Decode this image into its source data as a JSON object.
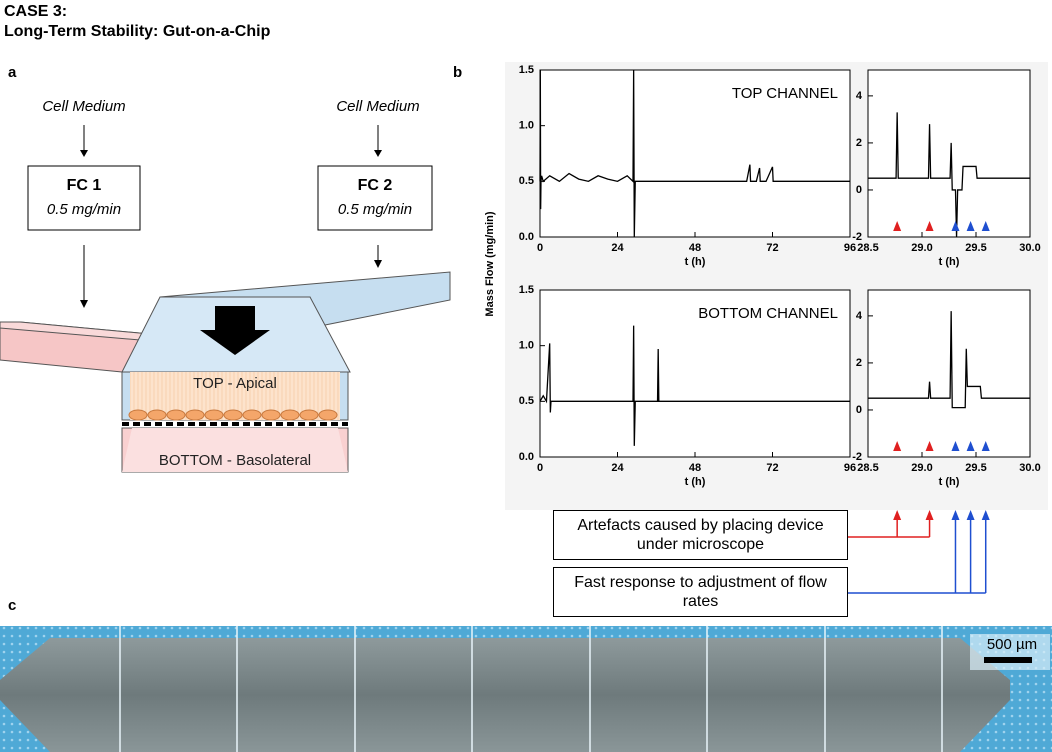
{
  "header": {
    "case": "CASE 3:",
    "title": "Long-Term Stability: Gut-on-a-Chip"
  },
  "panel_labels": [
    "a",
    "b",
    "c"
  ],
  "diagram": {
    "inputs": [
      {
        "label": "Cell Medium",
        "controller": "FC 1",
        "rate": "0.5 mg/min"
      },
      {
        "label": "Cell Medium",
        "controller": "FC 2",
        "rate": "0.5 mg/min"
      }
    ],
    "top_layer": "TOP - Apical",
    "bottom_layer": "BOTTOM - Basolateral"
  },
  "shared_y_label": "Mass Flow (mg/min)",
  "chart_data": [
    {
      "type": "line",
      "annotation": "TOP CHANNEL",
      "x_label": "t (h)",
      "x": [
        0,
        0.1,
        0.2,
        0.3,
        0.5,
        1,
        3,
        6,
        9,
        12,
        15,
        18,
        21,
        24,
        27,
        28.8,
        29,
        29.2,
        29.5,
        32,
        36,
        40,
        44,
        48,
        52,
        56,
        60,
        64,
        65,
        65.2,
        67,
        68,
        68.2,
        70,
        72,
        72.2,
        76,
        80,
        84,
        88,
        92,
        96
      ],
      "series": [
        {
          "color": "#000000",
          "values": [
            0.5,
            1.5,
            0.25,
            0.5,
            0.55,
            0.5,
            0.55,
            0.5,
            0.57,
            0.52,
            0.5,
            0.55,
            0.52,
            0.5,
            0.55,
            0.5,
            1.5,
            0.0,
            0.5,
            0.5,
            0.5,
            0.5,
            0.5,
            0.5,
            0.5,
            0.5,
            0.5,
            0.5,
            0.65,
            0.5,
            0.5,
            0.62,
            0.5,
            0.5,
            0.63,
            0.5,
            0.5,
            0.5,
            0.5,
            0.5,
            0.5,
            0.5
          ]
        }
      ],
      "xlim": [
        0,
        96
      ],
      "xticks": [
        0,
        24,
        48,
        72,
        96
      ],
      "ylim": [
        0,
        1.5
      ],
      "yticks": [
        {
          "value": 0,
          "label": "0.0"
        },
        0.5,
        {
          "value": 1,
          "label": "1.0"
        },
        1.5
      ]
    },
    {
      "type": "line",
      "x_label": "t (h)",
      "x": [
        28.5,
        28.76,
        28.77,
        28.78,
        28.79,
        29.06,
        29.07,
        29.08,
        29.26,
        29.27,
        29.28,
        29.31,
        29.32,
        29.33,
        29.37,
        29.38,
        29.5,
        29.51,
        30
      ],
      "series": [
        {
          "color": "#000000",
          "values": [
            0.5,
            0.5,
            3.3,
            0.5,
            0.5,
            0.5,
            2.8,
            0.5,
            0.5,
            2.0,
            0.0,
            0.0,
            -2.0,
            0.0,
            0.0,
            1.0,
            1.0,
            0.5,
            0.5
          ]
        }
      ],
      "markers": {
        "x": [
          28.77,
          29.07,
          29.31,
          29.45,
          29.59
        ],
        "colors": [
          "#e02020",
          "#e02020",
          "#1f4fd0",
          "#1f4fd0",
          "#1f4fd0"
        ]
      },
      "xlim": [
        28.5,
        30
      ],
      "xticks": [
        28.5,
        {
          "value": 29,
          "label": "29.0"
        },
        29.5,
        {
          "value": 30,
          "label": "30.0"
        }
      ],
      "ylim": [
        -2,
        5.1
      ],
      "yticks": [
        -2,
        0,
        2,
        4
      ]
    },
    {
      "type": "line",
      "annotation": "BOTTOM CHANNEL",
      "x_label": "t (h)",
      "x": [
        0,
        1,
        2,
        3,
        3.2,
        3.4,
        6,
        12,
        18,
        24,
        28.8,
        29,
        29.2,
        29.5,
        33,
        36.4,
        36.6,
        36.8,
        40,
        48,
        56,
        64,
        72,
        80,
        88,
        96
      ],
      "series": [
        {
          "color": "#000000",
          "values": [
            0.5,
            0.55,
            0.5,
            1.02,
            0.4,
            0.5,
            0.5,
            0.5,
            0.5,
            0.5,
            0.5,
            1.18,
            0.1,
            0.5,
            0.5,
            0.5,
            0.97,
            0.5,
            0.5,
            0.5,
            0.5,
            0.5,
            0.5,
            0.5,
            0.5,
            0.5
          ]
        }
      ],
      "xlim": [
        0,
        96
      ],
      "xticks": [
        0,
        24,
        48,
        72,
        96
      ],
      "ylim": [
        0,
        1.5
      ],
      "yticks": [
        {
          "value": 0,
          "label": "0.0"
        },
        0.5,
        {
          "value": 1,
          "label": "1.0"
        },
        1.5
      ]
    },
    {
      "type": "line",
      "x_label": "t (h)",
      "x": [
        28.5,
        29.06,
        29.07,
        29.08,
        29.26,
        29.27,
        29.28,
        29.4,
        29.41,
        29.42,
        29.43,
        29.54,
        29.55,
        30
      ],
      "series": [
        {
          "color": "#000000",
          "values": [
            0.5,
            0.5,
            1.2,
            0.5,
            0.5,
            4.2,
            0.1,
            0.1,
            2.6,
            1.0,
            1.0,
            1.0,
            0.5,
            0.5
          ]
        }
      ],
      "markers": {
        "x": [
          28.77,
          29.07,
          29.31,
          29.45,
          29.59
        ],
        "colors": [
          "#e02020",
          "#e02020",
          "#1f4fd0",
          "#1f4fd0",
          "#1f4fd0"
        ]
      },
      "xlim": [
        28.5,
        30
      ],
      "xticks": [
        28.5,
        {
          "value": 29,
          "label": "29.0"
        },
        29.5,
        {
          "value": 30,
          "label": "30.0"
        }
      ],
      "ylim": [
        -2,
        5.1
      ],
      "yticks": [
        -2,
        0,
        2,
        4
      ]
    }
  ],
  "callouts": [
    {
      "text": "Artefacts caused by placing device under microscope",
      "color": "#e02020"
    },
    {
      "text": "Fast response to adjustment of flow rates",
      "color": "#1f4fd0"
    }
  ],
  "micrograph": {
    "scale_bar": "500 µm"
  }
}
